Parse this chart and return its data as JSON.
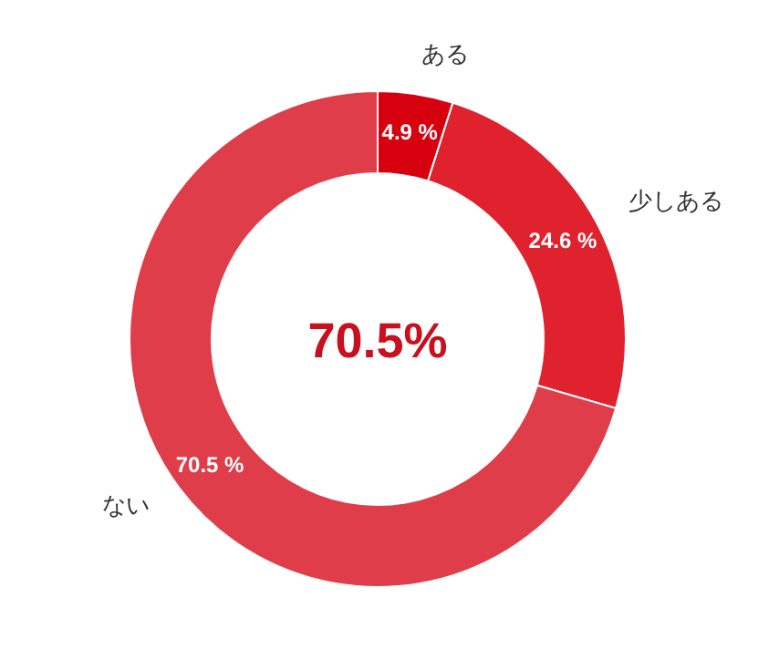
{
  "chart_data": {
    "type": "donut",
    "categories": [
      "ある",
      "少しある",
      "ない"
    ],
    "values": [
      4.9,
      24.6,
      70.5
    ],
    "colors": [
      "#d7000f",
      "#e0222f",
      "#e03d4a"
    ],
    "value_labels": [
      "4.9 %",
      "24.6 %",
      "70.5 %"
    ],
    "annotations": [
      "70.5%"
    ]
  }
}
